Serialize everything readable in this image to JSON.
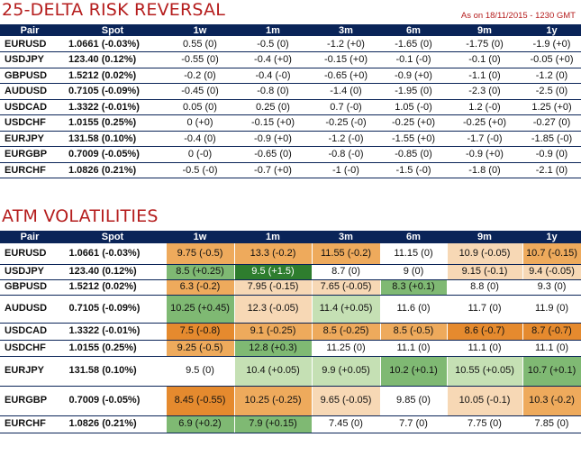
{
  "rr": {
    "title": "25-DELTA RISK REVERSAL",
    "asof": "As on 18/11/2015 - 1230 GMT",
    "headers": [
      "Pair",
      "Spot",
      "1w",
      "1m",
      "3m",
      "6m",
      "9m",
      "1y"
    ],
    "rows": [
      [
        "EURUSD",
        "1.0661 (-0.03%)",
        "0.55 (0)",
        "-0.5 (0)",
        "-1.2 (+0)",
        "-1.65 (0)",
        "-1.75 (0)",
        "-1.9 (+0)"
      ],
      [
        "USDJPY",
        "123.40 (0.12%)",
        "-0.55 (0)",
        "-0.4 (+0)",
        "-0.15 (+0)",
        "-0.1 (-0)",
        "-0.1 (0)",
        "-0.05 (+0)"
      ],
      [
        "GBPUSD",
        "1.5212 (0.02%)",
        "-0.2 (0)",
        "-0.4 (-0)",
        "-0.65 (+0)",
        "-0.9 (+0)",
        "-1.1 (0)",
        "-1.2 (0)"
      ],
      [
        "AUDUSD",
        "0.7105 (-0.09%)",
        "-0.45 (0)",
        "-0.8 (0)",
        "-1.4 (0)",
        "-1.95 (0)",
        "-2.3 (0)",
        "-2.5 (0)"
      ],
      [
        "USDCAD",
        "1.3322 (-0.01%)",
        "0.05 (0)",
        "0.25 (0)",
        "0.7 (-0)",
        "1.05 (-0)",
        "1.2 (-0)",
        "1.25 (+0)"
      ],
      [
        "USDCHF",
        "1.0155 (0.25%)",
        "0 (+0)",
        "-0.15 (+0)",
        "-0.25 (-0)",
        "-0.25 (+0)",
        "-0.25 (+0)",
        "-0.27 (0)"
      ],
      [
        "EURJPY",
        "131.58 (0.10%)",
        "-0.4 (0)",
        "-0.9 (+0)",
        "-1.2 (-0)",
        "-1.55 (+0)",
        "-1.7 (-0)",
        "-1.85 (-0)"
      ],
      [
        "EURGBP",
        "0.7009 (-0.05%)",
        "0 (-0)",
        "-0.65 (0)",
        "-0.8 (-0)",
        "-0.85 (0)",
        "-0.9 (+0)",
        "-0.9 (0)"
      ],
      [
        "EURCHF",
        "1.0826 (0.21%)",
        "-0.5 (-0)",
        "-0.7 (+0)",
        "-1 (-0)",
        "-1.5 (-0)",
        "-1.8 (0)",
        "-2.1 (0)"
      ]
    ]
  },
  "atm": {
    "title": "ATM VOLATILITIES",
    "headers": [
      "Pair",
      "Spot",
      "1w",
      "1m",
      "3m",
      "6m",
      "9m",
      "1y"
    ],
    "colors": {
      "w": "#ffffff",
      "lg": "#c5e0b4",
      "mg": "#7fb973",
      "dg": "#2e7d2e",
      "lo": "#f7d8b5",
      "o": "#eeaa5c",
      "do": "#e58a2e"
    },
    "rows": [
      {
        "h": 23,
        "cells": [
          [
            "EURUSD",
            "w"
          ],
          [
            "1.0661 (-0.03%)",
            "w"
          ],
          [
            "9.75 (-0.5)",
            "o"
          ],
          [
            "13.3 (-0.2)",
            "o"
          ],
          [
            "11.55 (-0.2)",
            "o"
          ],
          [
            "11.15 (0)",
            "w"
          ],
          [
            "10.9 (-0.05)",
            "lo"
          ],
          [
            "10.7 (-0.15)",
            "o"
          ]
        ]
      },
      {
        "h": 17,
        "cells": [
          [
            "USDJPY",
            "w"
          ],
          [
            "123.40 (0.12%)",
            "w"
          ],
          [
            "8.5 (+0.25)",
            "mg"
          ],
          [
            "9.5 (+1.5)",
            "dg"
          ],
          [
            "8.7 (0)",
            "w"
          ],
          [
            "9 (0)",
            "w"
          ],
          [
            "9.15 (-0.1)",
            "lo"
          ],
          [
            "9.4 (-0.05)",
            "lo"
          ]
        ]
      },
      {
        "h": 17,
        "cells": [
          [
            "GBPUSD",
            "w"
          ],
          [
            "1.5212 (0.02%)",
            "w"
          ],
          [
            "6.3 (-0.2)",
            "o"
          ],
          [
            "7.95 (-0.15)",
            "lo"
          ],
          [
            "7.65 (-0.05)",
            "lo"
          ],
          [
            "8.3 (+0.1)",
            "mg"
          ],
          [
            "8.8 (0)",
            "w"
          ],
          [
            "9.3 (0)",
            "w"
          ]
        ]
      },
      {
        "h": 31,
        "cells": [
          [
            "AUDUSD",
            "w"
          ],
          [
            "0.7105 (-0.09%)",
            "w"
          ],
          [
            "10.25 (+0.45)",
            "mg"
          ],
          [
            "12.3 (-0.05)",
            "lo"
          ],
          [
            "11.4 (+0.05)",
            "lg"
          ],
          [
            "11.6 (0)",
            "w"
          ],
          [
            "11.7 (0)",
            "w"
          ],
          [
            "11.9 (0)",
            "w"
          ]
        ]
      },
      {
        "h": 19,
        "cells": [
          [
            "USDCAD",
            "w"
          ],
          [
            "1.3322 (-0.01%)",
            "w"
          ],
          [
            "7.5 (-0.8)",
            "do"
          ],
          [
            "9.1 (-0.25)",
            "o"
          ],
          [
            "8.5 (-0.25)",
            "o"
          ],
          [
            "8.5 (-0.5)",
            "o"
          ],
          [
            "8.6 (-0.7)",
            "do"
          ],
          [
            "8.7 (-0.7)",
            "do"
          ]
        ]
      },
      {
        "h": 18,
        "cells": [
          [
            "USDCHF",
            "w"
          ],
          [
            "1.0155 (0.25%)",
            "w"
          ],
          [
            "9.25 (-0.5)",
            "o"
          ],
          [
            "12.8 (+0.3)",
            "mg"
          ],
          [
            "11.25 (0)",
            "w"
          ],
          [
            "11.1 (0)",
            "w"
          ],
          [
            "11.1 (0)",
            "w"
          ],
          [
            "11.1 (0)",
            "w"
          ]
        ]
      },
      {
        "h": 33,
        "cells": [
          [
            "EURJPY",
            "w"
          ],
          [
            "131.58 (0.10%)",
            "w"
          ],
          [
            "9.5 (0)",
            "w"
          ],
          [
            "10.4 (+0.05)",
            "lg"
          ],
          [
            "9.9 (+0.05)",
            "lg"
          ],
          [
            "10.2 (+0.1)",
            "mg"
          ],
          [
            "10.55 (+0.05)",
            "lg"
          ],
          [
            "10.7 (+0.1)",
            "mg"
          ]
        ]
      },
      {
        "h": 33,
        "cells": [
          [
            "EURGBP",
            "w"
          ],
          [
            "0.7009 (-0.05%)",
            "w"
          ],
          [
            "8.45 (-0.55)",
            "do"
          ],
          [
            "10.25 (-0.25)",
            "o"
          ],
          [
            "9.65 (-0.05)",
            "lo"
          ],
          [
            "9.85 (0)",
            "w"
          ],
          [
            "10.05 (-0.1)",
            "lo"
          ],
          [
            "10.3 (-0.2)",
            "o"
          ]
        ]
      },
      {
        "h": 19,
        "cells": [
          [
            "EURCHF",
            "w"
          ],
          [
            "1.0826 (0.21%)",
            "w"
          ],
          [
            "6.9 (+0.2)",
            "mg"
          ],
          [
            "7.9 (+0.15)",
            "mg"
          ],
          [
            "7.45 (0)",
            "w"
          ],
          [
            "7.7 (0)",
            "w"
          ],
          [
            "7.75 (0)",
            "w"
          ],
          [
            "7.85 (0)",
            "w"
          ]
        ]
      }
    ]
  }
}
